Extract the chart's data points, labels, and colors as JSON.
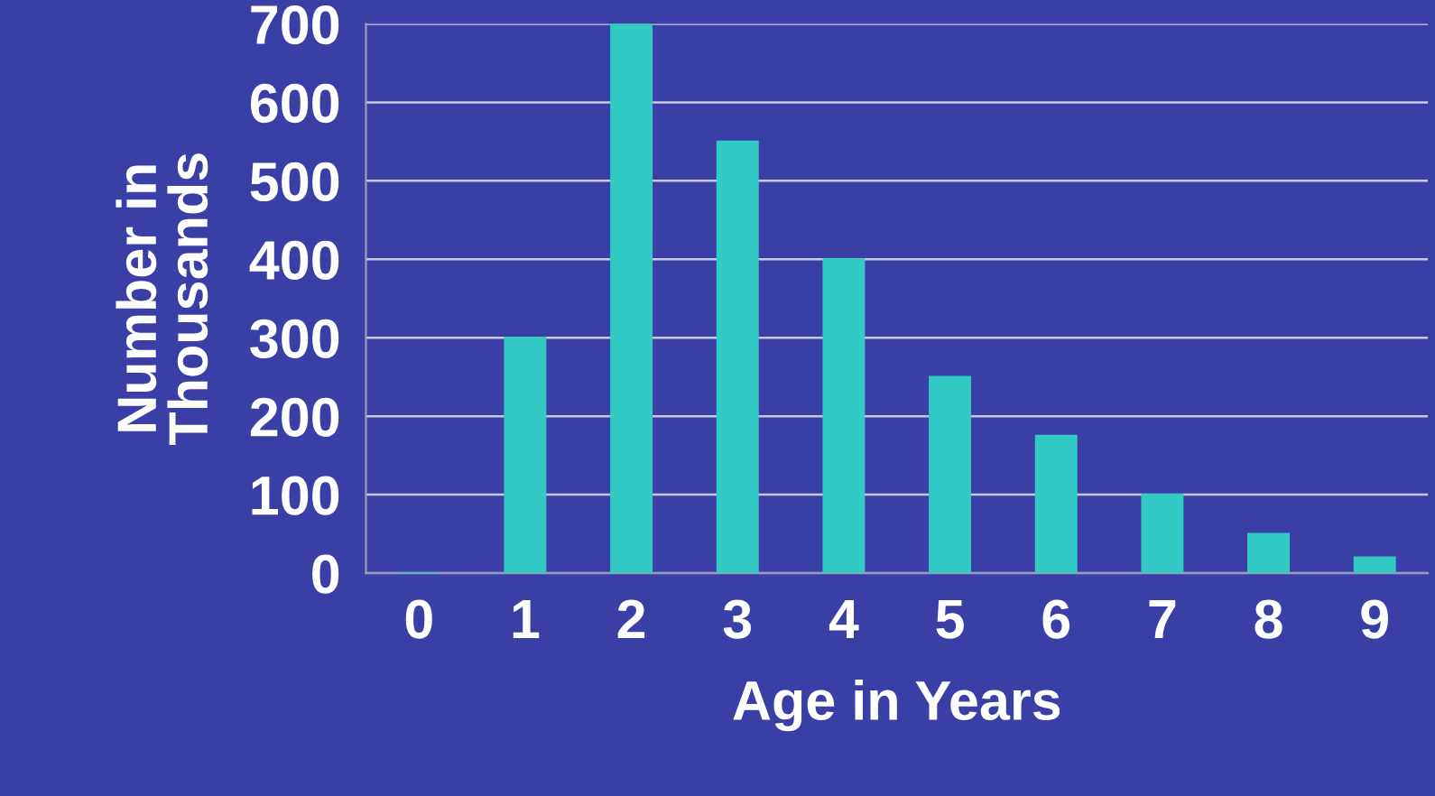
{
  "chart_data": {
    "type": "bar",
    "xlabel": "Age in Years",
    "ylabel": "Number in\nThousands",
    "categories": [
      "0",
      "1",
      "2",
      "3",
      "4",
      "5",
      "6",
      "7",
      "8",
      "9"
    ],
    "values": [
      0,
      300,
      700,
      550,
      400,
      250,
      175,
      100,
      50,
      20
    ],
    "color": "#33c9c4",
    "ylim": [
      0,
      700
    ],
    "yticks": [
      0,
      100,
      200,
      300,
      400,
      500,
      600,
      700
    ],
    "grid": "y"
  }
}
